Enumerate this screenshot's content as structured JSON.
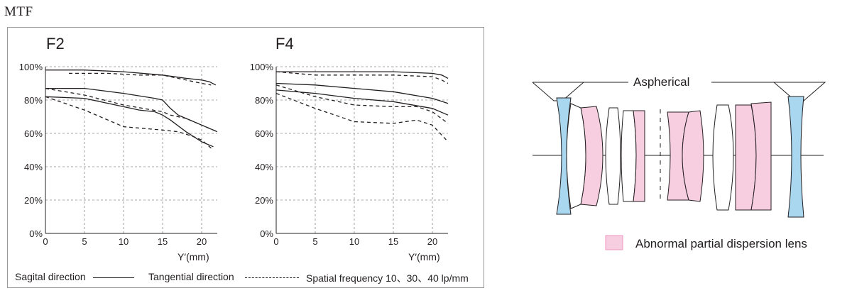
{
  "heading": "MTF",
  "chart_data": [
    {
      "type": "line",
      "title": "F2",
      "xlabel": "Y′(mm)",
      "ylabel": "",
      "xlim": [
        0,
        22
      ],
      "ylim": [
        0,
        100
      ],
      "x_ticks": [
        "0",
        "5",
        "10",
        "15",
        "20"
      ],
      "y_ticks": [
        "0%",
        "20%",
        "40%",
        "60%",
        "80%",
        "100%"
      ],
      "grid": true,
      "series": [
        {
          "style": "solid",
          "points": [
            [
              0,
              98
            ],
            [
              5,
              98
            ],
            [
              10,
              97
            ],
            [
              15,
              95
            ],
            [
              18,
              93
            ],
            [
              20,
              92
            ],
            [
              21,
              91
            ],
            [
              21.8,
              89
            ]
          ]
        },
        {
          "style": "dashed",
          "points": [
            [
              3,
              96
            ],
            [
              8,
              96
            ],
            [
              12,
              95
            ],
            [
              15,
              95
            ],
            [
              18,
              92
            ],
            [
              20,
              90
            ],
            [
              21.2,
              89
            ]
          ]
        },
        {
          "style": "solid",
          "points": [
            [
              0,
              87
            ],
            [
              5,
              87
            ],
            [
              10,
              84
            ],
            [
              14,
              81
            ],
            [
              15,
              80
            ],
            [
              16,
              75
            ],
            [
              17,
              71
            ],
            [
              20,
              65
            ],
            [
              22,
              61
            ]
          ]
        },
        {
          "style": "dashed",
          "points": [
            [
              0,
              87
            ],
            [
              5,
              83
            ],
            [
              10,
              77
            ],
            [
              15,
              73
            ],
            [
              16,
              71
            ],
            [
              18,
              69
            ],
            [
              20,
              65
            ],
            [
              22,
              61
            ]
          ]
        },
        {
          "style": "solid",
          "points": [
            [
              0,
              82
            ],
            [
              5,
              81
            ],
            [
              10,
              76
            ],
            [
              12,
              74
            ],
            [
              14,
              73
            ],
            [
              15,
              71
            ],
            [
              16,
              68
            ],
            [
              18,
              61
            ],
            [
              20,
              55
            ],
            [
              21.5,
              52
            ]
          ]
        },
        {
          "style": "dashed",
          "points": [
            [
              0,
              82
            ],
            [
              5,
              74
            ],
            [
              10,
              64
            ],
            [
              15,
              62
            ],
            [
              17,
              61
            ],
            [
              19,
              58
            ],
            [
              20,
              56
            ],
            [
              21.5,
              50
            ]
          ]
        }
      ]
    },
    {
      "type": "line",
      "title": "F4",
      "xlabel": "Y′(mm)",
      "ylabel": "",
      "xlim": [
        0,
        22
      ],
      "ylim": [
        0,
        100
      ],
      "x_ticks": [
        "0",
        "5",
        "10",
        "15",
        "20"
      ],
      "y_ticks": [
        "0%",
        "20%",
        "40%",
        "60%",
        "80%",
        "100%"
      ],
      "grid": true,
      "series": [
        {
          "style": "solid",
          "points": [
            [
              0,
              97
            ],
            [
              5,
              97
            ],
            [
              10,
              97
            ],
            [
              15,
              97
            ],
            [
              20,
              96
            ],
            [
              21.2,
              95
            ],
            [
              22,
              93
            ]
          ]
        },
        {
          "style": "dashed",
          "points": [
            [
              0,
              97
            ],
            [
              5,
              95
            ],
            [
              10,
              95
            ],
            [
              15,
              95
            ],
            [
              20,
              94
            ],
            [
              21.2,
              92
            ],
            [
              22,
              90
            ]
          ]
        },
        {
          "style": "solid",
          "points": [
            [
              0,
              90
            ],
            [
              5,
              89
            ],
            [
              10,
              87
            ],
            [
              15,
              85
            ],
            [
              20,
              81
            ],
            [
              22,
              78
            ]
          ]
        },
        {
          "style": "dashed",
          "points": [
            [
              0,
              89
            ],
            [
              5,
              82
            ],
            [
              10,
              77
            ],
            [
              15,
              76
            ],
            [
              18,
              76
            ],
            [
              20,
              73
            ],
            [
              22,
              66
            ]
          ]
        },
        {
          "style": "solid",
          "points": [
            [
              0,
              86
            ],
            [
              5,
              84
            ],
            [
              10,
              81
            ],
            [
              15,
              79
            ],
            [
              20,
              75
            ],
            [
              22,
              71
            ]
          ]
        },
        {
          "style": "dashed",
          "points": [
            [
              0,
              84
            ],
            [
              5,
              75
            ],
            [
              10,
              67
            ],
            [
              15,
              66
            ],
            [
              18,
              68
            ],
            [
              20,
              65
            ],
            [
              22,
              55
            ]
          ]
        }
      ]
    }
  ],
  "legend": {
    "sagittal": "Sagital direction",
    "tangential": "Tangential direction",
    "frequency": "Spatial frequency 10、30、40 lp/mm"
  },
  "lens_diagram": {
    "aspherical_label": "Aspherical",
    "dispersion_label": "Abnormal partial dispersion lens",
    "colors": {
      "aspherical": "#a9d7f0",
      "dispersion": "#f7cde0",
      "outline": "#231f20"
    }
  }
}
